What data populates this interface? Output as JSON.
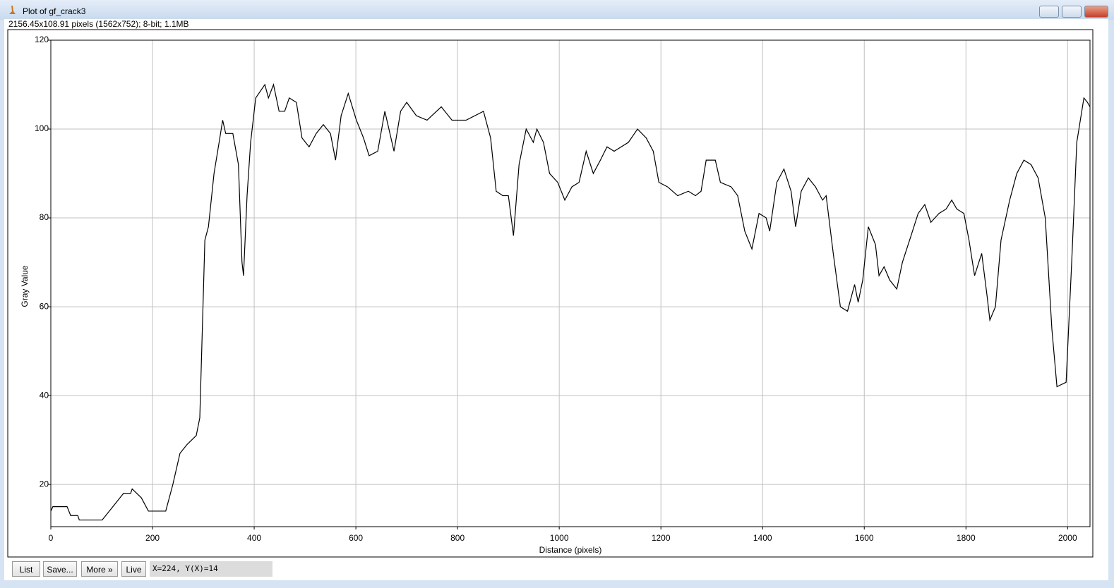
{
  "window": {
    "title": "Plot of gf_crack3",
    "info": "2156.45x108.91 pixels (1562x752); 8-bit; 1.1MB"
  },
  "buttons": [
    "List",
    "Save...",
    "More »",
    "Live"
  ],
  "status": "X=224, Y(X)=14",
  "chart_data": {
    "type": "line",
    "x_label": "Distance (pixels)",
    "y_label": "Gray Value",
    "x": [
      0,
      4,
      18,
      32,
      39,
      53,
      56,
      101,
      108,
      129,
      143,
      157,
      160,
      178,
      192,
      226,
      240,
      254,
      268,
      286,
      293,
      303,
      310,
      321,
      331,
      338,
      344,
      358,
      369,
      376,
      379,
      386,
      393,
      403,
      421,
      428,
      438,
      449,
      460,
      469,
      483,
      494,
      508,
      522,
      536,
      550,
      560,
      571,
      585,
      601,
      615,
      626,
      643,
      657,
      675,
      688,
      700,
      719,
      740,
      768,
      789,
      817,
      851,
      865,
      876,
      889,
      900,
      910,
      921,
      935,
      949,
      956,
      969,
      981,
      997,
      1011,
      1025,
      1039,
      1053,
      1067,
      1081,
      1094,
      1108,
      1122,
      1136,
      1154,
      1171,
      1185,
      1196,
      1213,
      1233,
      1254,
      1268,
      1279,
      1289,
      1307,
      1317,
      1338,
      1351,
      1365,
      1379,
      1393,
      1407,
      1414,
      1428,
      1442,
      1456,
      1465,
      1476,
      1490,
      1504,
      1518,
      1525,
      1539,
      1553,
      1567,
      1581,
      1588,
      1597,
      1608,
      1622,
      1629,
      1639,
      1650,
      1664,
      1675,
      1692,
      1706,
      1719,
      1731,
      1747,
      1761,
      1772,
      1782,
      1796,
      1806,
      1817,
      1831,
      1842,
      1847,
      1858,
      1869,
      1886,
      1900,
      1914,
      1928,
      1942,
      1956,
      1969,
      1979,
      1997,
      2008,
      2018,
      2032,
      2039,
      2044
    ],
    "values": [
      14,
      15,
      15,
      15,
      13,
      13,
      12,
      12,
      13,
      16,
      18,
      18,
      19,
      17,
      14,
      14,
      20,
      27,
      29,
      31,
      35,
      75,
      78,
      90,
      97,
      102,
      99,
      99,
      92,
      70,
      67,
      85,
      97,
      107,
      110,
      107,
      110,
      104,
      104,
      107,
      106,
      98,
      96,
      99,
      101,
      99,
      93,
      103,
      108,
      102,
      98,
      94,
      95,
      104,
      95,
      104,
      106,
      103,
      102,
      105,
      102,
      102,
      104,
      98,
      86,
      85,
      85,
      76,
      92,
      100,
      97,
      100,
      97,
      90,
      88,
      84,
      87,
      88,
      95,
      90,
      93,
      96,
      95,
      96,
      97,
      100,
      98,
      95,
      88,
      87,
      85,
      86,
      85,
      86,
      93,
      93,
      88,
      87,
      85,
      77,
      73,
      81,
      80,
      77,
      88,
      91,
      86,
      78,
      86,
      89,
      87,
      84,
      85,
      72,
      60,
      59,
      65,
      61,
      66,
      78,
      74,
      67,
      69,
      66,
      64,
      70,
      76,
      81,
      83,
      79,
      81,
      82,
      84,
      82,
      81,
      75,
      67,
      72,
      62,
      57,
      60,
      75,
      84,
      90,
      93,
      92,
      89,
      80,
      55,
      42,
      43,
      70,
      97,
      107,
      106,
      105
    ],
    "color": "#000000",
    "xlim": [
      0,
      2044
    ],
    "ylim": [
      10.5,
      120
    ],
    "xticks": [
      0,
      200,
      400,
      600,
      800,
      1000,
      1200,
      1400,
      1600,
      1800,
      2000
    ],
    "yticks": [
      20,
      40,
      60,
      80,
      100,
      120
    ],
    "grid": true
  }
}
